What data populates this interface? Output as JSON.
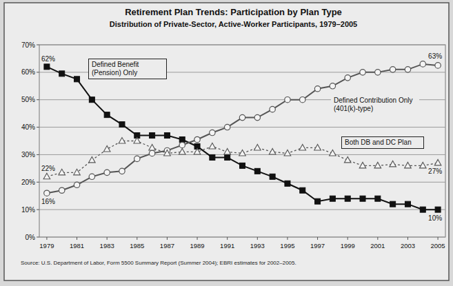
{
  "chart_data": {
    "type": "line",
    "title": "Retirement Plan Trends: Participation by Plan Type",
    "subtitle": "Distribution of Private-Sector, Active-Worker Participants, 1979–2005",
    "source": "Source: U.S. Department of Labor, Form 5500 Summary Report (Summer 2004); EBRI estimates for 2002–2005.",
    "x": [
      1979,
      1980,
      1981,
      1982,
      1983,
      1984,
      1985,
      1986,
      1987,
      1988,
      1989,
      1990,
      1991,
      1992,
      1993,
      1994,
      1995,
      1996,
      1997,
      1998,
      1999,
      2000,
      2001,
      2002,
      2003,
      2004,
      2005
    ],
    "xlim": [
      1978.5,
      2005.5
    ],
    "xticks": [
      1979,
      1981,
      1983,
      1985,
      1987,
      1989,
      1991,
      1993,
      1995,
      1997,
      1999,
      2001,
      2003,
      2005
    ],
    "ylim": [
      0,
      70
    ],
    "yticks": [
      {
        "value": 0,
        "label": "0%"
      },
      {
        "value": 10,
        "label": "10%"
      },
      {
        "value": 20,
        "label": "20%"
      },
      {
        "value": 30,
        "label": "30%"
      },
      {
        "value": 40,
        "label": "40%"
      },
      {
        "value": 50,
        "label": "50%"
      },
      {
        "value": 60,
        "label": "60%"
      },
      {
        "value": 70,
        "label": "70%"
      }
    ],
    "grid": true,
    "series": [
      {
        "name": "Defined Benefit (Pension) Only",
        "color": "#111111",
        "marker": "square",
        "line_style": "solid",
        "values": [
          62,
          59.5,
          57.5,
          50,
          44.5,
          41,
          37,
          37,
          37,
          35.5,
          33,
          29,
          29,
          26,
          24,
          22,
          19.5,
          17,
          13,
          14,
          14,
          14,
          14,
          12,
          12,
          10,
          10
        ]
      },
      {
        "name": "Defined Contribution Only (401(k)-type)",
        "color": "#555555",
        "marker": "circle",
        "line_style": "solid",
        "values": [
          16,
          17,
          19,
          22,
          23.5,
          24,
          28.5,
          30.5,
          31.5,
          33.5,
          35.5,
          38,
          40,
          43.5,
          43.5,
          46.5,
          50,
          50,
          54,
          55,
          58,
          60,
          60,
          61,
          61,
          63,
          62.5
        ]
      },
      {
        "name": "Both DB and DC Plan",
        "color": "#555555",
        "marker": "triangle",
        "line_style": "dashed",
        "values": [
          22,
          23.5,
          23.5,
          28,
          32,
          35,
          35,
          32.5,
          30.5,
          31,
          31,
          33,
          31,
          30.5,
          32.5,
          31,
          30.5,
          32.5,
          32.5,
          30.5,
          28,
          26,
          26,
          26.5,
          26,
          26,
          27
        ]
      }
    ],
    "annotations": [
      {
        "text": "62%",
        "x": 1979,
        "y": 62
      },
      {
        "text": "22%",
        "x": 1979,
        "y": 22
      },
      {
        "text": "16%",
        "x": 1979,
        "y": 16
      },
      {
        "text": "63%",
        "x": 2005,
        "y": 63
      },
      {
        "text": "27%",
        "x": 2005,
        "y": 27
      },
      {
        "text": "10%",
        "x": 2005,
        "y": 10
      }
    ]
  }
}
